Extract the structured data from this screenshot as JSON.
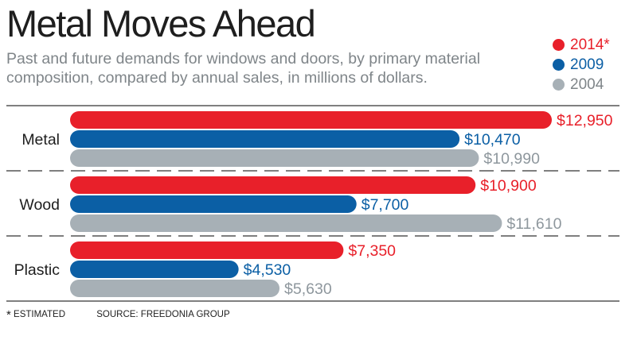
{
  "header": {
    "title": "Metal Moves Ahead",
    "subtitle": "Past and future demands for windows and doors, by primary material composition, compared by annual sales, in millions of dollars."
  },
  "legend": [
    {
      "label": "2014*",
      "color": "#e8202a"
    },
    {
      "label": "2009",
      "color": "#0b5fa5"
    },
    {
      "label": "2004",
      "color": "#a7b0b6"
    }
  ],
  "footer": {
    "footnote_mark": "*",
    "footnote_text": "ESTIMATED",
    "source": "SOURCE: FREEDONIA GROUP"
  },
  "chart_data": {
    "type": "bar",
    "orientation": "horizontal",
    "categories": [
      "Metal",
      "Wood",
      "Plastic"
    ],
    "series": [
      {
        "name": "2014*",
        "color": "#e8202a",
        "values": [
          12950,
          10900,
          7350
        ],
        "labels": [
          "$12,950",
          "$10,900",
          "$7,350"
        ]
      },
      {
        "name": "2009",
        "color": "#0b5fa5",
        "values": [
          10470,
          7700,
          4530
        ],
        "labels": [
          "$10,470",
          "$7,700",
          "$4,530"
        ]
      },
      {
        "name": "2004",
        "color": "#a7b0b6",
        "values": [
          10990,
          11610,
          5630
        ],
        "labels": [
          "$10,990",
          "$11,610",
          "$5,630"
        ]
      }
    ],
    "xlim": [
      0,
      14000
    ],
    "legend_position": "top-right",
    "grid": "dashed horizontal separators between categories"
  }
}
